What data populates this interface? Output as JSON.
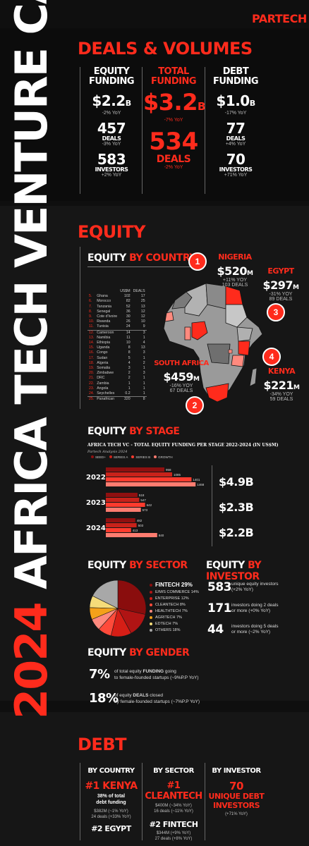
{
  "brand": "PARTECH",
  "vertical_title_year": "2024",
  "vertical_title": "AFRICA TECH VENTURE CAPITAL",
  "deals_volumes": {
    "title": "DEALS & VOLUMES",
    "equity": {
      "head1": "EQUITY",
      "head2": "FUNDING",
      "amount": "$2.2",
      "unit": "B",
      "amount_yoy": "-2% YoY",
      "deals": "457",
      "deals_label": "DEALS",
      "deals_yoy": "-3% YoY",
      "investors": "583",
      "investors_label": "INVESTORS",
      "investors_yoy": "+2% YoY"
    },
    "total": {
      "head1": "TOTAL",
      "head2": "FUNDING",
      "amount": "$3.2",
      "unit": "B",
      "amount_yoy": "-7% YoY",
      "deals": "534",
      "deals_label": "DEALS",
      "deals_yoy": "-2% YoY"
    },
    "debt": {
      "head1": "DEBT",
      "head2": "FUNDING",
      "amount": "$1.0",
      "unit": "B",
      "amount_yoy": "-17% YoY",
      "deals": "77",
      "deals_label": "DEALS",
      "deals_yoy": "+4% YoY",
      "investors": "70",
      "investors_label": "INVESTORS",
      "investors_yoy": "+71% YoY"
    }
  },
  "equity_section": {
    "title": "EQUITY",
    "by_country_title_a": "EQUITY",
    "by_country_title_b": "BY COUNTRY",
    "table_headers": {
      "usd": "US$M",
      "deals": "DEALS"
    },
    "countries": [
      {
        "rank": "5.",
        "name": "Ghana",
        "usd": "102",
        "deals": "17"
      },
      {
        "rank": "6.",
        "name": "Morocco",
        "usd": "82",
        "deals": "25"
      },
      {
        "rank": "7.",
        "name": "Tanzania",
        "usd": "52",
        "deals": "13"
      },
      {
        "rank": "8.",
        "name": "Senegal",
        "usd": "36",
        "deals": "12"
      },
      {
        "rank": "9.",
        "name": "Cote d'Ivoire",
        "usd": "30",
        "deals": "12"
      },
      {
        "rank": "10.",
        "name": "Rwanda",
        "usd": "26",
        "deals": "10"
      },
      {
        "rank": "11.",
        "name": "Tunisia",
        "usd": "24",
        "deals": "9"
      },
      {
        "rank": "12.",
        "name": "Cameroon",
        "usd": "14",
        "deals": "3"
      },
      {
        "rank": "13.",
        "name": "Namibia",
        "usd": "11",
        "deals": "1"
      },
      {
        "rank": "14.",
        "name": "Ethiopia",
        "usd": "10",
        "deals": "4"
      },
      {
        "rank": "15.",
        "name": "Uganda",
        "usd": "8",
        "deals": "13"
      },
      {
        "rank": "16.",
        "name": "Congo",
        "usd": "8",
        "deals": "3"
      },
      {
        "rank": "17.",
        "name": "Sudan",
        "usd": "5",
        "deals": "1"
      },
      {
        "rank": "18.",
        "name": "Algeria",
        "usd": "4",
        "deals": "2"
      },
      {
        "rank": "19.",
        "name": "Somalia",
        "usd": "3",
        "deals": "1"
      },
      {
        "rank": "20.",
        "name": "Zimbabwe",
        "usd": "2",
        "deals": "3"
      },
      {
        "rank": "21.",
        "name": "DRC",
        "usd": "2",
        "deals": "1"
      },
      {
        "rank": "22.",
        "name": "Zambia",
        "usd": "1",
        "deals": "1"
      },
      {
        "rank": "23.",
        "name": "Angola",
        "usd": "1",
        "deals": "1"
      },
      {
        "rank": "24.",
        "name": "Seychelles",
        "usd": "0.2",
        "deals": "1"
      },
      {
        "rank": "25.",
        "name": "Panafrican",
        "usd": "320",
        "deals": "8"
      }
    ],
    "top4": [
      {
        "num": "1",
        "name": "NIGERIA",
        "amount": "$520",
        "unit": "M",
        "yoy": "+11% YOY",
        "deals": "103 DEALS"
      },
      {
        "num": "2",
        "name": "SOUTH AFRICA",
        "amount": "$459",
        "unit": "M",
        "yoy": "-16% YOY",
        "deals": "67 DEALS"
      },
      {
        "num": "3",
        "name": "EGYPT",
        "amount": "$297",
        "unit": "M",
        "yoy": "-31% YOY",
        "deals": "89 DEALS"
      },
      {
        "num": "4",
        "name": "KENYA",
        "amount": "$221",
        "unit": "M",
        "yoy": "-34% YOY",
        "deals": "59 DEALS"
      }
    ],
    "by_stage_title_a": "EQUITY",
    "by_stage_title_b": "BY STAGE",
    "stage_totals": [
      "$4.9B",
      "$2.3B",
      "$2.2B"
    ],
    "by_sector_title_a": "EQUITY",
    "by_sector_title_b": "BY SECTOR",
    "by_investor_title_a": "EQUITY",
    "by_investor_title_b": "BY INVESTOR",
    "investor_stats": [
      {
        "num": "583",
        "line1": "unique equity investors",
        "line2": "(+2% YoY)"
      },
      {
        "num": "171",
        "line1": "investors doing 2 deals",
        "line2": "or more (+0% YoY)"
      },
      {
        "num": "44",
        "line1": "investors doing 5 deals",
        "line2": "or more (~2% YoY)"
      }
    ],
    "by_gender_title_a": "EQUITY",
    "by_gender_title_b": "BY GENDER",
    "gender_stats": [
      {
        "num": "7%",
        "line1a": "of total equity ",
        "line1b": "FUNDING",
        "line1c": " going",
        "line2": "to female-founded startups (~9%P.P YoY)"
      },
      {
        "num": "18%",
        "line1a": "of equity ",
        "line1b": "DEALS",
        "line1c": " closed",
        "line2": "by female-founded startups (~7%P.P YoY)"
      }
    ]
  },
  "chart_data": [
    {
      "type": "bar",
      "title": "AFRICA TECH VC - TOTAL EQUITY FUNDING PER STAGE 2022-2024 (IN US$M)",
      "subtitle": "Partech Analysis 2024",
      "categories": [
        "2022",
        "2023",
        "2024"
      ],
      "series": [
        {
          "name": "SEED+",
          "values": [
            958,
            518,
            482
          ],
          "color": "#8f1010"
        },
        {
          "name": "SERIES A",
          "values": [
            1085,
            547,
            503
          ],
          "color": "#c8221a"
        },
        {
          "name": "SERIES B",
          "values": [
            1401,
            642,
            413
          ],
          "color": "#ff3b2e"
        },
        {
          "name": "GROWTH",
          "values": [
            1468,
            573,
            840
          ],
          "color": "#ff7c70"
        }
      ],
      "ylim": [
        0,
        1500
      ]
    },
    {
      "type": "pie",
      "slices": [
        {
          "name": "FINTECH",
          "value": 29,
          "color": "#8a0d0d"
        },
        {
          "name": "E/M/S COMMERCE",
          "value": 14,
          "color": "#b01414"
        },
        {
          "name": "ENTERPRISE",
          "value": 12,
          "color": "#d61e16"
        },
        {
          "name": "CLEANTECH",
          "value": 8,
          "color": "#ff4a3a"
        },
        {
          "name": "HEALTHTECH",
          "value": 7,
          "color": "#ff8a7e"
        },
        {
          "name": "AGRITECH",
          "value": 7,
          "color": "#f4a11a"
        },
        {
          "name": "EDTECH",
          "value": 7,
          "color": "#f5dc7a"
        },
        {
          "name": "OTHERS",
          "value": 18,
          "color": "#a8a8a8"
        }
      ]
    }
  ],
  "chart_labels": {
    "legend": [
      "SEED+",
      "SERIES A",
      "SERIES B",
      "GROWTH"
    ],
    "sector_legend": [
      {
        "label": "FINTECH 29%",
        "color": "#8a0d0d"
      },
      {
        "label": "E/M/S COMMERCE 14%",
        "color": "#b01414"
      },
      {
        "label": "ENTERPRISE 12%",
        "color": "#d61e16"
      },
      {
        "label": "CLEANTECH 8%",
        "color": "#ff4a3a"
      },
      {
        "label": "HEALTHTECH 7%",
        "color": "#ff8a7e"
      },
      {
        "label": "AGRITECH 7%",
        "color": "#f4a11a"
      },
      {
        "label": "EDTECH 7%",
        "color": "#f5dc7a"
      },
      {
        "label": "OTHERS 18%",
        "color": "#a8a8a8"
      }
    ]
  },
  "debt_section": {
    "title": "DEBT",
    "country": {
      "head": "BY COUNTRY",
      "first": "#1 KENYA",
      "desc1": "38% of total",
      "desc2": "debt funding",
      "stat1": "$382M (~1% YoY)",
      "stat2": "24 deals (+33% YoY)",
      "second": "#2 EGYPT"
    },
    "sector": {
      "head": "BY SECTOR",
      "first": "#1 CLEANTECH",
      "stat1": "$400M (~34% YoY)",
      "stat2": "16 deals (~11% YoY)",
      "second": "#2 FINTECH",
      "stat3": "$344M (+9% YoY)",
      "stat4": "27 deals (+8% YoY)"
    },
    "investor": {
      "head": "BY INVESTOR",
      "num": "70",
      "line1": "UNIQUE DEBT",
      "line2": "INVESTORS",
      "yoy": "(+71% YoY)"
    }
  }
}
